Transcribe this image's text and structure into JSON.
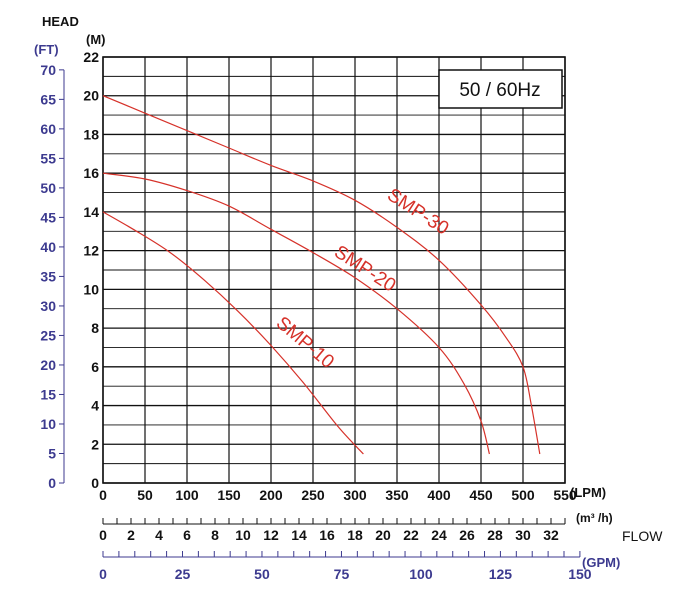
{
  "chart_data": {
    "type": "line",
    "frequency_label": "50 / 60Hz",
    "y_axis": {
      "title": "HEAD",
      "unit": "(M)",
      "ylim": [
        0,
        22
      ],
      "ticks": [
        0,
        2,
        4,
        6,
        8,
        10,
        12,
        14,
        16,
        18,
        20,
        22
      ]
    },
    "y_axis_ft": {
      "unit": "(FT)",
      "ticks": [
        0,
        5,
        10,
        15,
        20,
        25,
        30,
        35,
        40,
        45,
        50,
        55,
        60,
        65,
        70
      ]
    },
    "x_axis": {
      "unit": "(LPM)",
      "xlim": [
        0,
        550
      ],
      "ticks": [
        0,
        50,
        100,
        150,
        200,
        250,
        300,
        350,
        400,
        450,
        500,
        550
      ]
    },
    "x_axis_m3h": {
      "unit": "(m³ /h)",
      "ticks": [
        0,
        2,
        4,
        6,
        8,
        10,
        12,
        14,
        16,
        18,
        20,
        22,
        24,
        26,
        28,
        30,
        32
      ]
    },
    "x_axis_gpm": {
      "unit": "(GPM)",
      "ticks": [
        0,
        25,
        50,
        75,
        100,
        125,
        150
      ]
    },
    "flow_label": "FLOW",
    "series": [
      {
        "name": "SMP-10",
        "points": [
          [
            0,
            14
          ],
          [
            40,
            13
          ],
          [
            80,
            11.9
          ],
          [
            120,
            10.5
          ],
          [
            160,
            8.9
          ],
          [
            200,
            7.1
          ],
          [
            240,
            5.1
          ],
          [
            280,
            2.9
          ],
          [
            310,
            1.5
          ]
        ]
      },
      {
        "name": "SMP-20",
        "points": [
          [
            0,
            16
          ],
          [
            50,
            15.7
          ],
          [
            100,
            15.1
          ],
          [
            150,
            14.3
          ],
          [
            200,
            13.1
          ],
          [
            250,
            11.9
          ],
          [
            300,
            10.6
          ],
          [
            350,
            9
          ],
          [
            400,
            7
          ],
          [
            430,
            5.1
          ],
          [
            450,
            3.2
          ],
          [
            460,
            1.5
          ]
        ]
      },
      {
        "name": "SMP-30",
        "points": [
          [
            0,
            20
          ],
          [
            50,
            19.1
          ],
          [
            100,
            18.2
          ],
          [
            150,
            17.3
          ],
          [
            200,
            16.4
          ],
          [
            250,
            15.6
          ],
          [
            300,
            14.6
          ],
          [
            350,
            13.2
          ],
          [
            400,
            11.5
          ],
          [
            450,
            9.2
          ],
          [
            480,
            7.5
          ],
          [
            500,
            6
          ],
          [
            510,
            4
          ],
          [
            520,
            1.5
          ]
        ]
      }
    ]
  }
}
